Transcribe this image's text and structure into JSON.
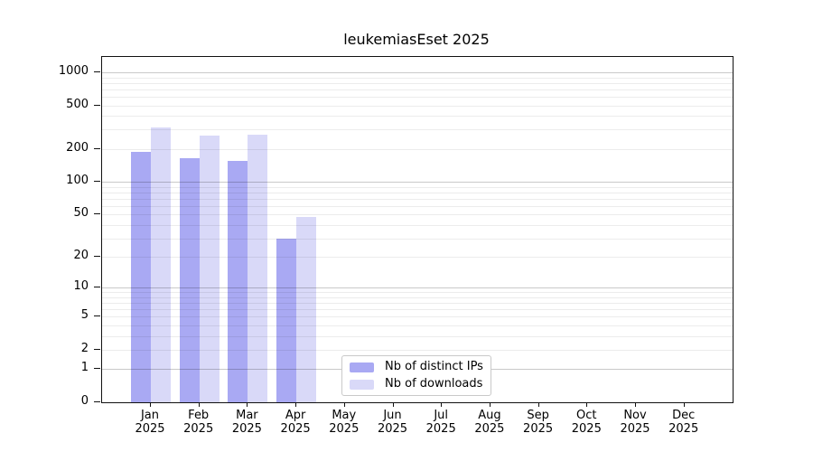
{
  "chart_data": {
    "type": "bar",
    "title": "leukemiasEset 2025",
    "y_scale": "log10(value+1)",
    "ylim": [
      0,
      1380
    ],
    "y_ticks": [
      0,
      1,
      2,
      5,
      10,
      20,
      50,
      100,
      200,
      500,
      1000
    ],
    "grid": "horizontal; light minor lines at 2-9 per decade, darker lines at powers of 10",
    "legend_position": "inside bottom-center",
    "categories": [
      "Jan 2025",
      "Feb 2025",
      "Mar 2025",
      "Apr 2025",
      "May 2025",
      "Jun 2025",
      "Jul 2025",
      "Aug 2025",
      "Sep 2025",
      "Oct 2025",
      "Nov 2025",
      "Dec 2025"
    ],
    "series": [
      {
        "name": "Nb of distinct IPs",
        "color": "#a9a9f3",
        "values": [
          188,
          164,
          157,
          30,
          null,
          null,
          null,
          null,
          null,
          null,
          null,
          null
        ]
      },
      {
        "name": "Nb of downloads",
        "color": "#d9d9f8",
        "values": [
          314,
          264,
          268,
          47,
          null,
          null,
          null,
          null,
          null,
          null,
          null,
          null
        ]
      }
    ]
  },
  "colors": {
    "frame": "#111111",
    "grid_major": "#c9c9c9",
    "grid_minor": "#ececec",
    "legend_border": "#c9c9c9"
  }
}
